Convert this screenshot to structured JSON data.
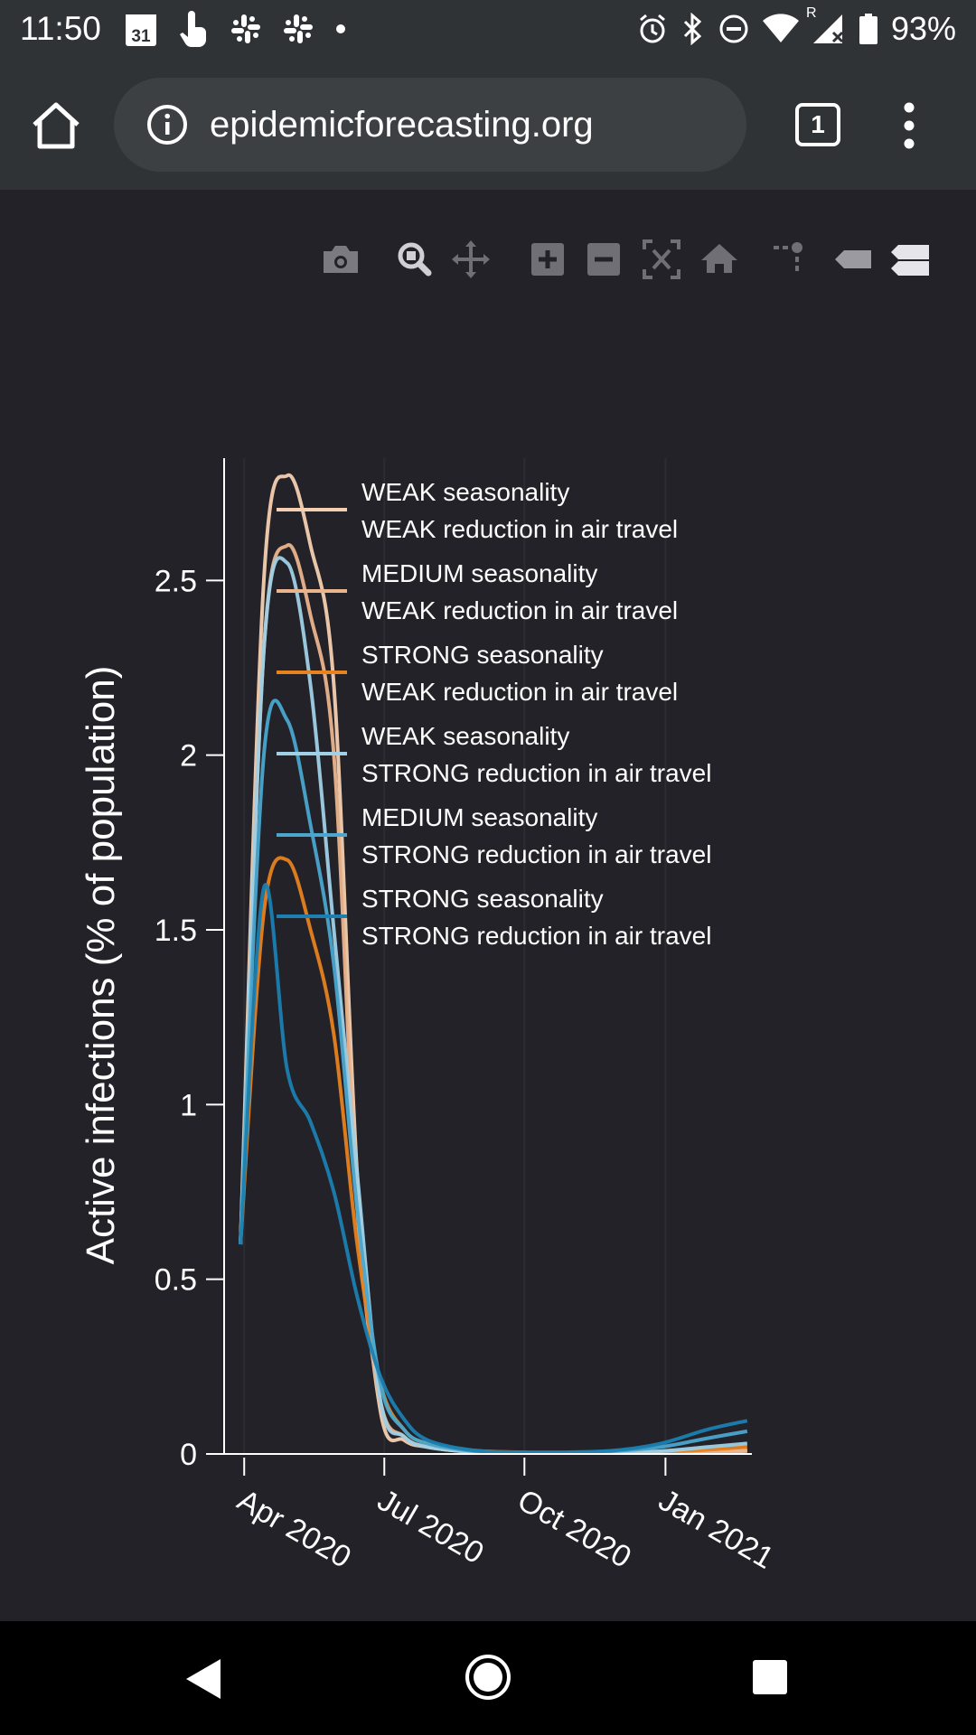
{
  "status_bar": {
    "time": "11:50",
    "calendar_day": "31",
    "battery": "93%",
    "network_label": "R"
  },
  "browser": {
    "url": "epidemicforecasting.org",
    "tab_count": "1"
  },
  "modebar": {
    "buttons": [
      "camera-icon",
      "zoom-icon",
      "pan-icon",
      "zoom-in-icon",
      "zoom-out-icon",
      "autoscale-icon",
      "reset-axes-icon",
      "spike-lines-icon",
      "hover-closest-icon",
      "hover-compare-icon"
    ]
  },
  "chart_data": {
    "type": "line",
    "title": "",
    "ylabel": "Active infections (% of population)",
    "xlabel": "",
    "ylim": [
      0,
      2.85
    ],
    "yticks": [
      0,
      0.5,
      1,
      1.5,
      2,
      2.5
    ],
    "ytick_labels": [
      "0",
      "0.5",
      "1",
      "1.5",
      "2",
      "2.5"
    ],
    "xticks": [
      {
        "label": "Apr 2020",
        "t": 0.08
      },
      {
        "label": "Jul 2020",
        "t": 3.08
      },
      {
        "label": "Oct 2020",
        "t": 6.08
      },
      {
        "label": "Jan 2021",
        "t": 9.1
      }
    ],
    "x_range": [
      -0.35,
      10.95
    ],
    "t": [
      0,
      0.5,
      1,
      1.5,
      2,
      2.5,
      3,
      3.5,
      4,
      5,
      6,
      7,
      8,
      9,
      10,
      10.85
    ],
    "legend_position": "top-right",
    "series": [
      {
        "name": "WEAK seasonality / WEAK reduction in air travel",
        "line1": "WEAK seasonality",
        "line2": "WEAK reduction in air travel",
        "color": "#f4d0b0",
        "values": [
          0.6,
          2.5,
          2.8,
          2.6,
          2.2,
          0.8,
          0.12,
          0.04,
          0.02,
          0.005,
          0.003,
          0.003,
          0.004,
          0.006,
          0.008,
          0.01
        ]
      },
      {
        "name": "MEDIUM seasonality / WEAK reduction in air travel",
        "line1": "MEDIUM seasonality",
        "line2": "WEAK reduction in air travel",
        "color": "#eab48c",
        "values": [
          0.6,
          2.3,
          2.6,
          2.4,
          2.0,
          0.7,
          0.15,
          0.05,
          0.02,
          0.006,
          0.003,
          0.003,
          0.003,
          0.004,
          0.006,
          0.008
        ]
      },
      {
        "name": "STRONG seasonality / WEAK reduction in air travel",
        "line1": "STRONG seasonality",
        "line2": "WEAK reduction in air travel",
        "color": "#e8821f",
        "values": [
          0.6,
          1.55,
          1.7,
          1.5,
          1.2,
          0.6,
          0.2,
          0.07,
          0.03,
          0.01,
          0.005,
          0.004,
          0.004,
          0.006,
          0.012,
          0.02
        ]
      },
      {
        "name": "WEAK seasonality / STRONG reduction in air travel",
        "line1": "WEAK seasonality",
        "line2": "STRONG reduction in air travel",
        "color": "#9fd0e6",
        "values": [
          0.6,
          2.3,
          2.55,
          2.2,
          1.5,
          0.8,
          0.15,
          0.05,
          0.02,
          0.006,
          0.003,
          0.003,
          0.004,
          0.008,
          0.02,
          0.03
        ]
      },
      {
        "name": "MEDIUM seasonality / STRONG reduction in air travel",
        "line1": "MEDIUM seasonality",
        "line2": "STRONG reduction in air travel",
        "color": "#4aa6cd",
        "values": [
          0.6,
          2.0,
          2.1,
          1.8,
          1.4,
          0.7,
          0.2,
          0.07,
          0.03,
          0.008,
          0.004,
          0.004,
          0.008,
          0.02,
          0.045,
          0.065
        ]
      },
      {
        "name": "STRONG seasonality / STRONG reduction in air travel",
        "line1": "STRONG seasonality",
        "line2": "STRONG reduction in air travel",
        "color": "#1b7fb0",
        "values": [
          0.6,
          1.62,
          1.1,
          0.95,
          0.75,
          0.45,
          0.22,
          0.1,
          0.04,
          0.01,
          0.005,
          0.005,
          0.01,
          0.03,
          0.07,
          0.095
        ]
      }
    ]
  }
}
